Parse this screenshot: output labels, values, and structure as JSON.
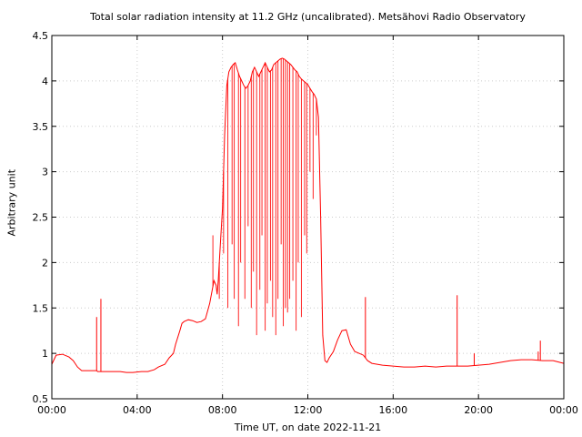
{
  "chart_data": {
    "type": "line",
    "title": "Total solar radiation intensity at 11.2 GHz (uncalibrated). Metsähovi Radio Observatory",
    "xlabel": "Time UT, on date 2022-11-21",
    "ylabel": "Arbitrary unit",
    "xlim": [
      0,
      24
    ],
    "ylim": [
      0.5,
      4.5
    ],
    "x_ticks": [
      {
        "value": 0,
        "label": "00:00"
      },
      {
        "value": 4,
        "label": "04:00"
      },
      {
        "value": 8,
        "label": "08:00"
      },
      {
        "value": 12,
        "label": "12:00"
      },
      {
        "value": 16,
        "label": "16:00"
      },
      {
        "value": 20,
        "label": "20:00"
      },
      {
        "value": 24,
        "label": "00:00"
      }
    ],
    "y_ticks": [
      {
        "value": 0.5,
        "label": "0.5"
      },
      {
        "value": 1,
        "label": "1"
      },
      {
        "value": 1.5,
        "label": "1.5"
      },
      {
        "value": 2,
        "label": "2"
      },
      {
        "value": 2.5,
        "label": "2.5"
      },
      {
        "value": 3,
        "label": "3"
      },
      {
        "value": 3.5,
        "label": "3.5"
      },
      {
        "value": 4,
        "label": "4"
      },
      {
        "value": 4.5,
        "label": "4.5"
      }
    ],
    "grid": true,
    "series": [
      {
        "color": "#ff0000",
        "x": [
          0.0,
          0.2,
          0.5,
          0.8,
          1.0,
          1.2,
          1.4,
          1.6,
          2.0,
          2.1,
          2.15,
          2.3,
          2.32,
          2.4,
          2.8,
          3.2,
          3.5,
          3.8,
          4.2,
          4.5,
          4.8,
          5.0,
          5.3,
          5.5,
          5.7,
          5.8,
          6.0,
          6.1,
          6.2,
          6.4,
          6.6,
          6.8,
          7.0,
          7.2,
          7.4,
          7.6,
          7.7,
          7.75,
          7.8,
          7.9,
          8.0,
          8.1,
          8.2,
          8.3,
          8.4,
          8.5,
          8.6,
          8.7,
          8.8,
          8.9,
          9.0,
          9.1,
          9.2,
          9.3,
          9.4,
          9.5,
          9.6,
          9.7,
          9.8,
          9.9,
          10.0,
          10.1,
          10.2,
          10.3,
          10.4,
          10.5,
          10.6,
          10.7,
          10.8,
          10.9,
          11.0,
          11.1,
          11.2,
          11.3,
          11.4,
          11.5,
          11.6,
          11.7,
          11.8,
          11.9,
          12.0,
          12.1,
          12.2,
          12.3,
          12.4,
          12.5,
          12.6,
          12.7,
          12.8,
          12.9,
          13.0,
          13.2,
          13.4,
          13.6,
          13.8,
          14.0,
          14.2,
          14.4,
          14.6,
          14.8,
          15.0,
          15.5,
          16.0,
          16.5,
          17.0,
          17.5,
          18.0,
          18.5,
          19.0,
          19.5,
          20.0,
          20.5,
          21.0,
          21.5,
          22.0,
          22.5,
          23.0,
          23.5,
          24.0
        ],
        "values": [
          0.88,
          0.98,
          0.99,
          0.96,
          0.92,
          0.85,
          0.81,
          0.81,
          0.81,
          0.81,
          0.8,
          0.8,
          0.8,
          0.8,
          0.8,
          0.8,
          0.79,
          0.79,
          0.8,
          0.8,
          0.82,
          0.85,
          0.88,
          0.95,
          1.0,
          1.1,
          1.25,
          1.33,
          1.35,
          1.37,
          1.36,
          1.34,
          1.35,
          1.38,
          1.55,
          1.8,
          1.75,
          1.65,
          1.8,
          2.2,
          2.6,
          3.4,
          3.95,
          4.1,
          4.15,
          4.18,
          4.2,
          4.12,
          4.05,
          4.0,
          3.95,
          3.92,
          3.95,
          4.0,
          4.1,
          4.15,
          4.1,
          4.05,
          4.1,
          4.15,
          4.2,
          4.15,
          4.1,
          4.12,
          4.18,
          4.2,
          4.22,
          4.24,
          4.25,
          4.24,
          4.22,
          4.2,
          4.18,
          4.15,
          4.12,
          4.1,
          4.05,
          4.02,
          4.0,
          3.98,
          3.96,
          3.92,
          3.88,
          3.85,
          3.8,
          3.6,
          2.5,
          1.2,
          0.92,
          0.9,
          0.95,
          1.02,
          1.15,
          1.25,
          1.26,
          1.1,
          1.02,
          1.0,
          0.98,
          0.92,
          0.89,
          0.87,
          0.86,
          0.85,
          0.85,
          0.86,
          0.85,
          0.86,
          0.86,
          0.86,
          0.87,
          0.88,
          0.9,
          0.92,
          0.93,
          0.93,
          0.92,
          0.92,
          0.89
        ]
      }
    ],
    "dips": [
      {
        "x": 7.55,
        "y": 2.3
      },
      {
        "x": 7.85,
        "y": 1.6
      },
      {
        "x": 8.05,
        "y": 2.1
      },
      {
        "x": 8.25,
        "y": 1.5
      },
      {
        "x": 8.45,
        "y": 2.2
      },
      {
        "x": 8.55,
        "y": 1.6
      },
      {
        "x": 8.75,
        "y": 1.3
      },
      {
        "x": 8.85,
        "y": 2.0
      },
      {
        "x": 9.05,
        "y": 1.6
      },
      {
        "x": 9.2,
        "y": 2.4
      },
      {
        "x": 9.35,
        "y": 1.5
      },
      {
        "x": 9.45,
        "y": 1.9
      },
      {
        "x": 9.6,
        "y": 1.2
      },
      {
        "x": 9.75,
        "y": 1.7
      },
      {
        "x": 9.85,
        "y": 2.3
      },
      {
        "x": 10.0,
        "y": 1.25
      },
      {
        "x": 10.1,
        "y": 1.55
      },
      {
        "x": 10.25,
        "y": 1.8
      },
      {
        "x": 10.35,
        "y": 1.4
      },
      {
        "x": 10.5,
        "y": 1.2
      },
      {
        "x": 10.6,
        "y": 1.6
      },
      {
        "x": 10.75,
        "y": 2.2
      },
      {
        "x": 10.85,
        "y": 1.3
      },
      {
        "x": 10.95,
        "y": 1.5
      },
      {
        "x": 11.05,
        "y": 1.45
      },
      {
        "x": 11.15,
        "y": 1.6
      },
      {
        "x": 11.3,
        "y": 1.8
      },
      {
        "x": 11.45,
        "y": 1.25
      },
      {
        "x": 11.55,
        "y": 2.0
      },
      {
        "x": 11.7,
        "y": 1.4
      },
      {
        "x": 11.85,
        "y": 2.3
      },
      {
        "x": 11.95,
        "y": 2.1
      },
      {
        "x": 12.1,
        "y": 3.0
      },
      {
        "x": 12.25,
        "y": 2.7
      },
      {
        "x": 12.4,
        "y": 3.4
      }
    ],
    "spikes": [
      {
        "x": 2.1,
        "y": 1.4
      },
      {
        "x": 2.3,
        "y": 1.6
      },
      {
        "x": 14.7,
        "y": 1.62
      },
      {
        "x": 19.0,
        "y": 1.64
      },
      {
        "x": 19.8,
        "y": 1.0
      },
      {
        "x": 22.8,
        "y": 1.02
      },
      {
        "x": 22.9,
        "y": 1.14
      }
    ]
  }
}
